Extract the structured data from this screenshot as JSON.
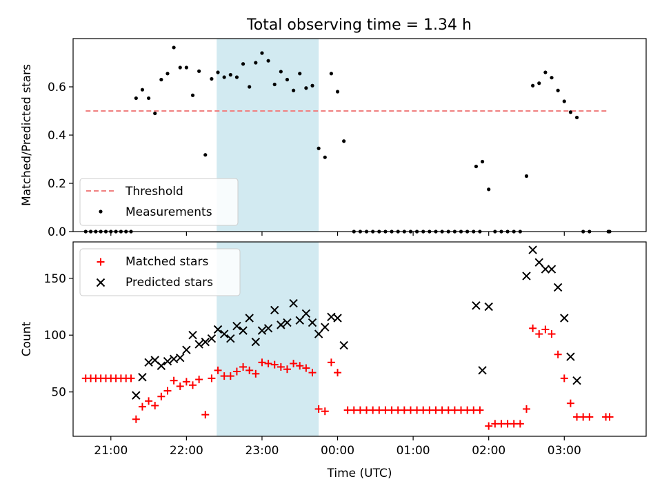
{
  "title": "Total observing time = 1.34 h",
  "colors": {
    "threshold": "#f08080",
    "highlight": "#add8e6",
    "matched": "#ff0000",
    "predicted": "#000000",
    "measurement": "#000000"
  },
  "chart_data": [
    {
      "type": "scatter",
      "ylabel": "Matched/Predicted stars",
      "ylim": [
        0,
        0.8
      ],
      "yticks": [
        0.0,
        0.2,
        0.4,
        0.6
      ],
      "ytick_labels": [
        "0.0",
        "0.2",
        "0.4",
        "0.6"
      ],
      "xlim": [
        "20:30",
        "04:05"
      ],
      "xticks": [
        "21:00",
        "22:00",
        "23:00",
        "00:00",
        "01:00",
        "02:00",
        "03:00"
      ],
      "highlight_span": [
        "22:24",
        "23:45"
      ],
      "legend": {
        "placement": "lower-left",
        "entries": [
          "Threshold",
          "Measurements"
        ]
      },
      "threshold": {
        "name": "Threshold",
        "value": 0.5,
        "x_range": [
          "20:40",
          "03:35"
        ]
      },
      "series": [
        {
          "name": "Measurements",
          "points": [
            [
              "20:40",
              0
            ],
            [
              "20:44",
              0
            ],
            [
              "20:48",
              0
            ],
            [
              "20:52",
              0
            ],
            [
              "20:56",
              0
            ],
            [
              "21:00",
              0
            ],
            [
              "21:04",
              0
            ],
            [
              "21:08",
              0
            ],
            [
              "21:12",
              0
            ],
            [
              "21:16",
              0
            ],
            [
              "21:20",
              0.553
            ],
            [
              "21:25",
              0.588
            ],
            [
              "21:30",
              0.553
            ],
            [
              "21:35",
              0.49
            ],
            [
              "21:40",
              0.63
            ],
            [
              "21:45",
              0.655
            ],
            [
              "21:50",
              0.763
            ],
            [
              "21:55",
              0.68
            ],
            [
              "22:00",
              0.68
            ],
            [
              "22:05",
              0.565
            ],
            [
              "22:10",
              0.665
            ],
            [
              "22:15",
              0.318
            ],
            [
              "22:20",
              0.633
            ],
            [
              "22:25",
              0.66
            ],
            [
              "22:30",
              0.64
            ],
            [
              "22:35",
              0.65
            ],
            [
              "22:40",
              0.64
            ],
            [
              "22:45",
              0.695
            ],
            [
              "22:50",
              0.6
            ],
            [
              "22:55",
              0.7
            ],
            [
              "23:00",
              0.74
            ],
            [
              "23:05",
              0.708
            ],
            [
              "23:10",
              0.61
            ],
            [
              "23:15",
              0.663
            ],
            [
              "23:20",
              0.63
            ],
            [
              "23:25",
              0.585
            ],
            [
              "23:30",
              0.655
            ],
            [
              "23:35",
              0.595
            ],
            [
              "23:40",
              0.605
            ],
            [
              "23:45",
              0.345
            ],
            [
              "23:50",
              0.308
            ],
            [
              "23:55",
              0.655
            ],
            [
              "00:00",
              0.58
            ],
            [
              "00:05",
              0.375
            ],
            [
              "00:13",
              0
            ],
            [
              "00:18",
              0
            ],
            [
              "00:23",
              0
            ],
            [
              "00:28",
              0
            ],
            [
              "00:33",
              0
            ],
            [
              "00:38",
              0
            ],
            [
              "00:43",
              0
            ],
            [
              "00:48",
              0
            ],
            [
              "00:53",
              0
            ],
            [
              "00:58",
              0
            ],
            [
              "01:03",
              0
            ],
            [
              "01:08",
              0
            ],
            [
              "01:13",
              0
            ],
            [
              "01:18",
              0
            ],
            [
              "01:23",
              0
            ],
            [
              "01:28",
              0
            ],
            [
              "01:33",
              0
            ],
            [
              "01:38",
              0
            ],
            [
              "01:43",
              0
            ],
            [
              "01:48",
              0
            ],
            [
              "01:53",
              0
            ],
            [
              "01:50",
              0.27
            ],
            [
              "01:55",
              0.29
            ],
            [
              "02:00",
              0.175
            ],
            [
              "02:05",
              0
            ],
            [
              "02:10",
              0
            ],
            [
              "02:15",
              0
            ],
            [
              "02:20",
              0
            ],
            [
              "02:25",
              0
            ],
            [
              "02:30",
              0.23
            ],
            [
              "02:35",
              0.605
            ],
            [
              "02:40",
              0.615
            ],
            [
              "02:45",
              0.66
            ],
            [
              "02:50",
              0.638
            ],
            [
              "02:55",
              0.585
            ],
            [
              "03:00",
              0.54
            ],
            [
              "03:05",
              0.495
            ],
            [
              "03:10",
              0.473
            ],
            [
              "03:15",
              0
            ],
            [
              "03:20",
              0
            ],
            [
              "03:35",
              0
            ],
            [
              "03:36",
              0
            ]
          ]
        }
      ]
    },
    {
      "type": "scatter",
      "xlabel": "Time (UTC)",
      "ylabel": "Count",
      "ylim": [
        11,
        182
      ],
      "yticks": [
        50,
        100,
        150
      ],
      "ytick_labels": [
        "50",
        "100",
        "150"
      ],
      "xlim": [
        "20:30",
        "04:05"
      ],
      "xticks": [
        "21:00",
        "22:00",
        "23:00",
        "00:00",
        "01:00",
        "02:00",
        "03:00"
      ],
      "xtick_labels": [
        "21:00",
        "22:00",
        "23:00",
        "00:00",
        "01:00",
        "02:00",
        "03:00"
      ],
      "highlight_span": [
        "22:24",
        "23:45"
      ],
      "legend": {
        "placement": "upper-left",
        "entries": [
          "Matched stars",
          "Predicted stars"
        ]
      },
      "series": [
        {
          "name": "Matched stars",
          "marker": "+",
          "points": [
            [
              "20:40",
              62
            ],
            [
              "20:44",
              62
            ],
            [
              "20:48",
              62
            ],
            [
              "20:52",
              62
            ],
            [
              "20:56",
              62
            ],
            [
              "21:00",
              62
            ],
            [
              "21:04",
              62
            ],
            [
              "21:08",
              62
            ],
            [
              "21:12",
              62
            ],
            [
              "21:16",
              62
            ],
            [
              "21:20",
              26
            ],
            [
              "21:25",
              37
            ],
            [
              "21:30",
              42
            ],
            [
              "21:35",
              38
            ],
            [
              "21:40",
              46
            ],
            [
              "21:45",
              51
            ],
            [
              "21:50",
              60
            ],
            [
              "21:55",
              55
            ],
            [
              "22:00",
              59
            ],
            [
              "22:05",
              56
            ],
            [
              "22:10",
              61
            ],
            [
              "22:15",
              30
            ],
            [
              "22:20",
              62
            ],
            [
              "22:25",
              69
            ],
            [
              "22:30",
              64
            ],
            [
              "22:35",
              64
            ],
            [
              "22:40",
              68
            ],
            [
              "22:45",
              72
            ],
            [
              "22:50",
              69
            ],
            [
              "22:55",
              66
            ],
            [
              "23:00",
              76
            ],
            [
              "23:05",
              75
            ],
            [
              "23:10",
              74
            ],
            [
              "23:15",
              72
            ],
            [
              "23:20",
              70
            ],
            [
              "23:25",
              75
            ],
            [
              "23:30",
              73
            ],
            [
              "23:35",
              71
            ],
            [
              "23:40",
              67
            ],
            [
              "23:45",
              35
            ],
            [
              "23:50",
              33
            ],
            [
              "23:55",
              76
            ],
            [
              "00:00",
              67
            ],
            [
              "00:08",
              34
            ],
            [
              "00:13",
              34
            ],
            [
              "00:18",
              34
            ],
            [
              "00:23",
              34
            ],
            [
              "00:28",
              34
            ],
            [
              "00:33",
              34
            ],
            [
              "00:38",
              34
            ],
            [
              "00:43",
              34
            ],
            [
              "00:48",
              34
            ],
            [
              "00:53",
              34
            ],
            [
              "00:58",
              34
            ],
            [
              "01:03",
              34
            ],
            [
              "01:08",
              34
            ],
            [
              "01:13",
              34
            ],
            [
              "01:18",
              34
            ],
            [
              "01:23",
              34
            ],
            [
              "01:28",
              34
            ],
            [
              "01:33",
              34
            ],
            [
              "01:38",
              34
            ],
            [
              "01:43",
              34
            ],
            [
              "01:48",
              34
            ],
            [
              "01:53",
              34
            ],
            [
              "02:00",
              20
            ],
            [
              "02:05",
              22
            ],
            [
              "02:10",
              22
            ],
            [
              "02:15",
              22
            ],
            [
              "02:20",
              22
            ],
            [
              "02:25",
              22
            ],
            [
              "02:30",
              35
            ],
            [
              "02:35",
              106
            ],
            [
              "02:40",
              101
            ],
            [
              "02:45",
              105
            ],
            [
              "02:50",
              101
            ],
            [
              "02:55",
              83
            ],
            [
              "03:00",
              62
            ],
            [
              "03:05",
              40
            ],
            [
              "03:10",
              28
            ],
            [
              "03:15",
              28
            ],
            [
              "03:20",
              28
            ],
            [
              "03:33",
              28
            ],
            [
              "03:36",
              28
            ]
          ]
        },
        {
          "name": "Predicted stars",
          "marker": "x",
          "points": [
            [
              "21:20",
              47
            ],
            [
              "21:25",
              63
            ],
            [
              "21:30",
              76
            ],
            [
              "21:35",
              78
            ],
            [
              "21:40",
              73
            ],
            [
              "21:45",
              77
            ],
            [
              "21:50",
              79
            ],
            [
              "21:55",
              80
            ],
            [
              "22:00",
              87
            ],
            [
              "22:05",
              100
            ],
            [
              "22:10",
              92
            ],
            [
              "22:15",
              94
            ],
            [
              "22:20",
              97
            ],
            [
              "22:25",
              105
            ],
            [
              "22:30",
              101
            ],
            [
              "22:35",
              97
            ],
            [
              "22:40",
              108
            ],
            [
              "22:45",
              104
            ],
            [
              "22:50",
              115
            ],
            [
              "22:55",
              94
            ],
            [
              "23:00",
              104
            ],
            [
              "23:05",
              106
            ],
            [
              "23:10",
              122
            ],
            [
              "23:15",
              109
            ],
            [
              "23:20",
              111
            ],
            [
              "23:25",
              128
            ],
            [
              "23:30",
              113
            ],
            [
              "23:35",
              119
            ],
            [
              "23:40",
              111
            ],
            [
              "23:45",
              101
            ],
            [
              "23:50",
              107
            ],
            [
              "23:55",
              116
            ],
            [
              "00:00",
              115
            ],
            [
              "00:05",
              91
            ],
            [
              "01:50",
              126
            ],
            [
              "01:55",
              69
            ],
            [
              "02:00",
              125
            ],
            [
              "02:30",
              152
            ],
            [
              "02:35",
              175
            ],
            [
              "02:40",
              164
            ],
            [
              "02:45",
              158
            ],
            [
              "02:50",
              158
            ],
            [
              "02:55",
              142
            ],
            [
              "03:00",
              115
            ],
            [
              "03:05",
              81
            ],
            [
              "03:10",
              60
            ]
          ]
        }
      ]
    }
  ]
}
